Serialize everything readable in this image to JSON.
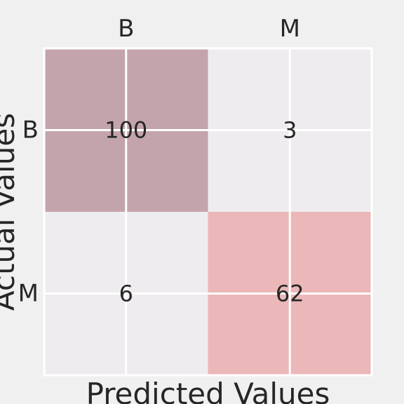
{
  "chart_data": {
    "type": "heatmap",
    "title": "",
    "xlabel": "Predicted Values",
    "ylabel": "Actual Values",
    "x_categories": [
      "B",
      "M"
    ],
    "y_categories": [
      "B",
      "M"
    ],
    "values": [
      [
        100,
        3
      ],
      [
        6,
        62
      ]
    ],
    "cell_colors": [
      [
        "#c4a4ac",
        "#efecef"
      ],
      [
        "#efecef",
        "#ebb7b8"
      ]
    ],
    "grid": true,
    "x_ticks_position": "top"
  }
}
